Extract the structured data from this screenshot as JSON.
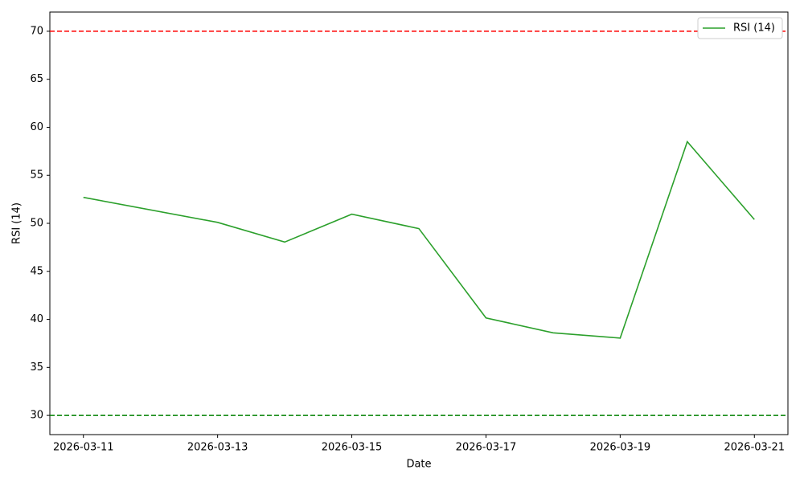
{
  "chart_data": {
    "type": "line",
    "xlabel": "Date",
    "ylabel": "RSI (14)",
    "x": [
      "2026-03-11",
      "2026-03-13",
      "2026-03-14",
      "2026-03-15",
      "2026-03-16",
      "2026-03-17",
      "2026-03-18",
      "2026-03-19",
      "2026-03-20",
      "2026-03-21"
    ],
    "series": [
      {
        "name": "RSI (14)",
        "color": "#2ca02c",
        "values": [
          52.7,
          50.1,
          48.05,
          50.95,
          49.45,
          40.15,
          38.6,
          38.05,
          58.5,
          50.4
        ]
      }
    ],
    "hlines": [
      {
        "value": 70,
        "color": "#ff0000"
      },
      {
        "value": 30,
        "color": "#008000"
      }
    ],
    "xlim": [
      "2026-03-10T12:00:00Z",
      "2026-03-21T12:00:00Z"
    ],
    "xticks": [
      "2026-03-11",
      "2026-03-13",
      "2026-03-15",
      "2026-03-17",
      "2026-03-19",
      "2026-03-21"
    ],
    "ylim": [
      28,
      72
    ],
    "yticks": [
      30,
      35,
      40,
      45,
      50,
      55,
      60,
      65,
      70
    ],
    "legend": "upper right"
  }
}
